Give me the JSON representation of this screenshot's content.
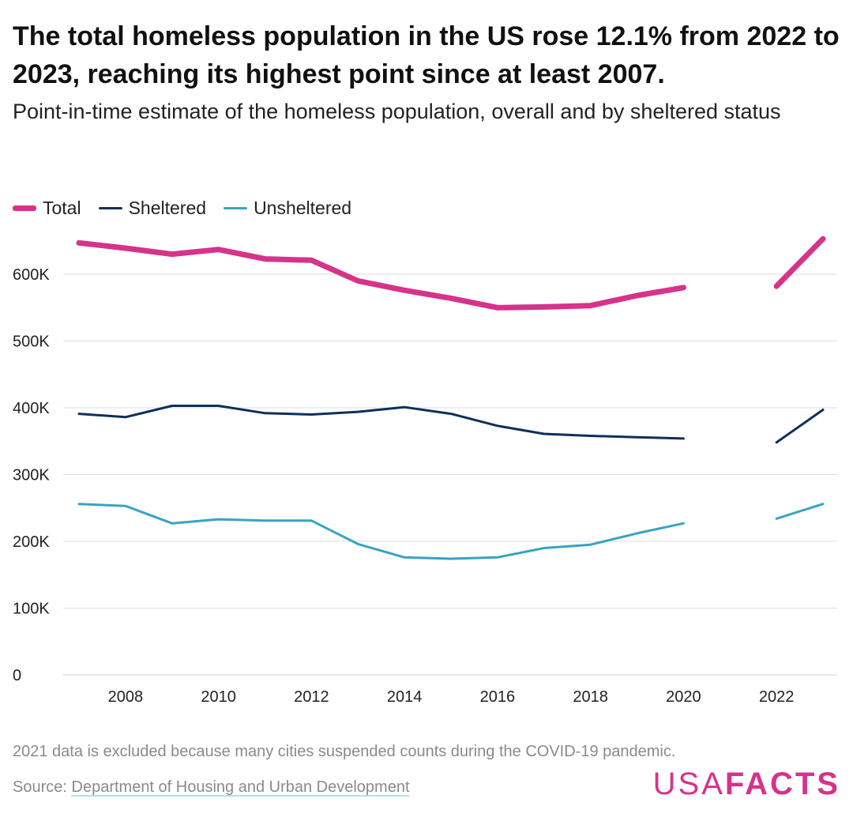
{
  "title": "The total homeless population in the US rose 12.1% from 2022 to 2023, reaching its highest point since at least 2007.",
  "subtitle": "Point-in-time estimate of the homeless population, overall and by sheltered status",
  "note": "2021 data is excluded because many cities suspended counts during the COVID-19 pandemic.",
  "source": {
    "label": "Source:",
    "link_text": "Department of Housing and Urban Development"
  },
  "logo": {
    "part1": "USA",
    "part2": "FACTS",
    "color": "#d6338a"
  },
  "chart_data": {
    "type": "line",
    "x_label": "",
    "y_label": "",
    "xlim": [
      2007,
      2023
    ],
    "ylim": [
      0,
      650000
    ],
    "grid": true,
    "legend_position": "top-left",
    "x_ticks": [
      {
        "value": 2008,
        "label": "2008"
      },
      {
        "value": 2010,
        "label": "2010"
      },
      {
        "value": 2012,
        "label": "2012"
      },
      {
        "value": 2014,
        "label": "2014"
      },
      {
        "value": 2016,
        "label": "2016"
      },
      {
        "value": 2018,
        "label": "2018"
      },
      {
        "value": 2020,
        "label": "2020"
      },
      {
        "value": 2022,
        "label": "2022"
      }
    ],
    "y_ticks": [
      {
        "value": 0,
        "label": "0"
      },
      {
        "value": 100000,
        "label": "100K"
      },
      {
        "value": 200000,
        "label": "200K"
      },
      {
        "value": 300000,
        "label": "300K"
      },
      {
        "value": 400000,
        "label": "400K"
      },
      {
        "value": 500000,
        "label": "500K"
      },
      {
        "value": 600000,
        "label": "600K"
      }
    ],
    "x": [
      2007,
      2008,
      2009,
      2010,
      2011,
      2012,
      2013,
      2014,
      2015,
      2016,
      2017,
      2018,
      2019,
      2020,
      2021,
      2022,
      2023
    ],
    "series": [
      {
        "name": "Total",
        "color": "#d6338a",
        "values": [
          647000,
          639000,
          630000,
          637000,
          623000,
          621000,
          590000,
          576000,
          564000,
          550000,
          551000,
          553000,
          568000,
          580000,
          null,
          582000,
          653000
        ]
      },
      {
        "name": "Sheltered",
        "color": "#0d2f5c",
        "values": [
          391000,
          386000,
          403000,
          403000,
          392000,
          390000,
          394000,
          401000,
          391000,
          373000,
          361000,
          358000,
          356000,
          354000,
          null,
          348000,
          397000
        ]
      },
      {
        "name": "Unsheltered",
        "color": "#3aa3c2",
        "values": [
          256000,
          253000,
          227000,
          233000,
          231000,
          231000,
          196000,
          176000,
          174000,
          176000,
          190000,
          195000,
          212000,
          227000,
          null,
          234000,
          256000
        ]
      }
    ]
  }
}
